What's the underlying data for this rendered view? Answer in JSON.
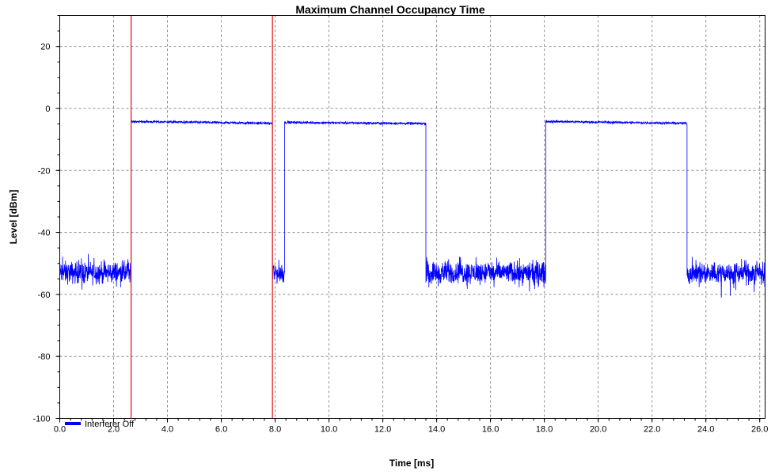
{
  "chart_data": {
    "type": "line",
    "title": "Maximum Channel Occupancy Time",
    "xlabel": "Time [ms]",
    "ylabel": "Level [dBm]",
    "xlim": [
      0,
      26.2
    ],
    "ylim": [
      -100,
      30
    ],
    "x_ticks": [
      0,
      2,
      4,
      6,
      8,
      10,
      12,
      14,
      16,
      18,
      20,
      22,
      24,
      26
    ],
    "x_tick_labels": [
      "0.0",
      "2.0",
      "4.0",
      "6.0",
      "8.0",
      "10.0",
      "12.0",
      "14.0",
      "16.0",
      "18.0",
      "20.0",
      "22.0",
      "24.0",
      "26.0"
    ],
    "x_minor_step": 0.4,
    "y_ticks": [
      -100,
      -80,
      -60,
      -40,
      -20,
      0,
      20
    ],
    "y_tick_labels": [
      "-100",
      "-80",
      "-60",
      "-40",
      "-20",
      "0",
      "20"
    ],
    "y_minor_step": 5,
    "grid": true,
    "legend": {
      "position": "bottom-left"
    },
    "series": [
      {
        "name": "Interferer Off",
        "color": "#0000ff",
        "segments": [
          {
            "x_start": 0.0,
            "x_end": 2.65,
            "level": -53,
            "noise": 3.0
          },
          {
            "x_start": 2.65,
            "x_end": 7.9,
            "level_start": -4.2,
            "level_end": -4.8,
            "noise": 0.35
          },
          {
            "x_start": 7.9,
            "x_end": 8.35,
            "level": -53,
            "noise": 3.0
          },
          {
            "x_start": 8.35,
            "x_end": 13.6,
            "level_start": -4.5,
            "level_end": -4.9,
            "noise": 0.35
          },
          {
            "x_start": 13.6,
            "x_end": 18.05,
            "level": -53,
            "noise": 3.0
          },
          {
            "x_start": 18.05,
            "x_end": 23.3,
            "level_start": -4.2,
            "level_end": -4.8,
            "noise": 0.35
          },
          {
            "x_start": 23.3,
            "x_end": 26.2,
            "level": -53,
            "noise": 3.0
          }
        ]
      }
    ],
    "markers": [
      {
        "x": 2.65,
        "color": "#e02020"
      },
      {
        "x": 7.9,
        "color": "#e02020"
      }
    ]
  }
}
